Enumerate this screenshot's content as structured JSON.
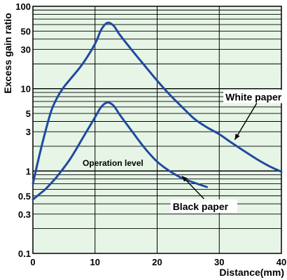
{
  "chart_data": {
    "type": "line",
    "title": "",
    "xlabel": "Distance(mm)",
    "ylabel": "Excess gain ratio",
    "xlim": [
      0,
      40
    ],
    "ylim": [
      0.1,
      100
    ],
    "yscale": "log",
    "grid": true,
    "x_ticks": [
      {
        "value": 0,
        "label": "0"
      },
      {
        "value": 10,
        "label": "10"
      },
      {
        "value": 20,
        "label": "20"
      },
      {
        "value": 30,
        "label": "30"
      },
      {
        "value": 40,
        "label": "40"
      }
    ],
    "y_ticks": [
      {
        "value": 0.1,
        "label": "0.1"
      },
      {
        "value": 0.3,
        "label": "0.3"
      },
      {
        "value": 0.5,
        "label": "0.5"
      },
      {
        "value": 1,
        "label": "1"
      },
      {
        "value": 3,
        "label": "3"
      },
      {
        "value": 5,
        "label": "5"
      },
      {
        "value": 10,
        "label": "10"
      },
      {
        "value": 30,
        "label": "30"
      },
      {
        "value": 50,
        "label": "50"
      },
      {
        "value": 100,
        "label": "100"
      }
    ],
    "series": [
      {
        "name": "White paper",
        "x": [
          0,
          1,
          2,
          3,
          4,
          5,
          6,
          8,
          10,
          11,
          12,
          13,
          14,
          16,
          18,
          20,
          22,
          24,
          26,
          28,
          30,
          32,
          34,
          36,
          38,
          40
        ],
        "y": [
          0.7,
          1.5,
          3,
          5.5,
          8,
          10.5,
          13,
          20,
          35,
          52,
          63,
          58,
          45,
          29,
          19,
          12.5,
          8.5,
          6,
          4.3,
          3.4,
          2.8,
          2.2,
          1.75,
          1.4,
          1.15,
          0.98
        ]
      },
      {
        "name": "Black paper",
        "x": [
          0,
          1,
          2,
          3,
          4,
          6,
          8,
          10,
          11,
          12,
          13,
          14,
          16,
          18,
          20,
          22,
          24,
          26,
          28
        ],
        "y": [
          0.45,
          0.52,
          0.6,
          0.72,
          0.88,
          1.4,
          2.5,
          4.5,
          6,
          6.8,
          6.2,
          4.8,
          3,
          1.9,
          1.3,
          1.0,
          0.82,
          0.72,
          0.64
        ]
      }
    ],
    "annotations": [
      {
        "text": "White paper",
        "x": 31,
        "y": 7.5,
        "arrow_to": [
          32.5,
          2.4
        ]
      },
      {
        "text": "Black paper",
        "x": 22.5,
        "y": 0.35,
        "arrow_to": [
          24,
          0.87
        ]
      },
      {
        "text": "Operation level",
        "x": 8,
        "y": 1.2,
        "line_y": 1
      }
    ]
  }
}
